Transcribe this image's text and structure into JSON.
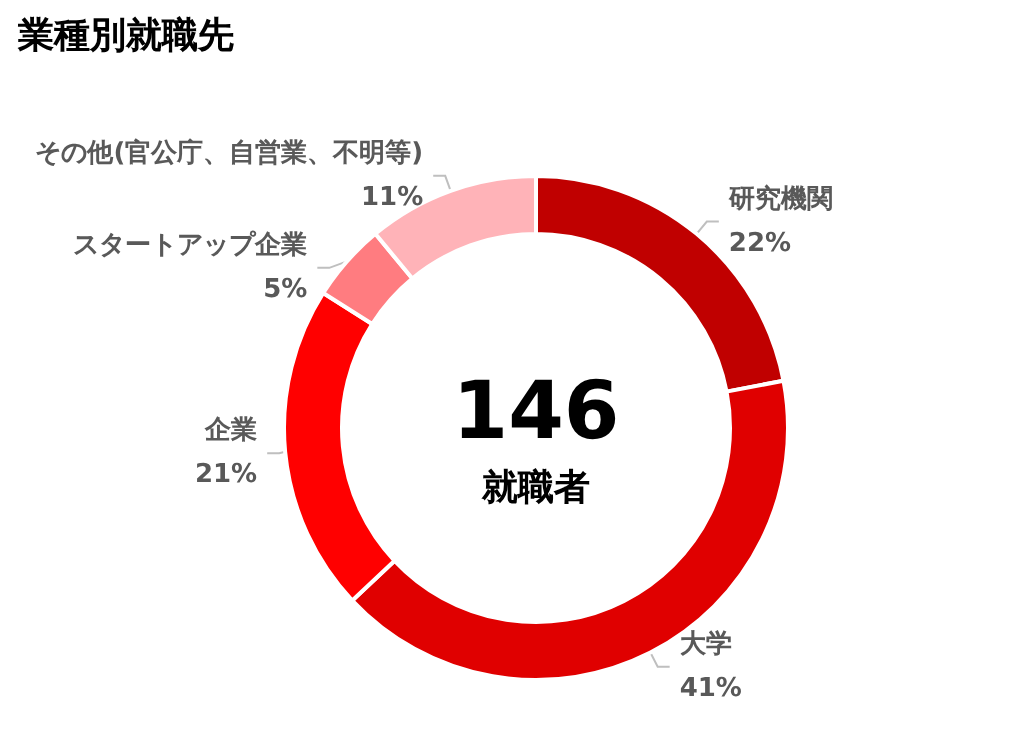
{
  "chart_data": {
    "type": "donut",
    "title": "業種別就職先",
    "categories": [
      "研究機関",
      "大学",
      "企業",
      "スタートアップ企業",
      "その他(官公庁、自営業、不明等)"
    ],
    "values": [
      22,
      41,
      21,
      5,
      11
    ],
    "value_labels": [
      "22%",
      "41%",
      "21%",
      "5%",
      "11%"
    ],
    "colors": [
      "#c00000",
      "#e00000",
      "#ff0000",
      "#ff7c80",
      "#ffb3b8"
    ],
    "annotations": [
      "146",
      "就職者"
    ],
    "legend": false
  }
}
